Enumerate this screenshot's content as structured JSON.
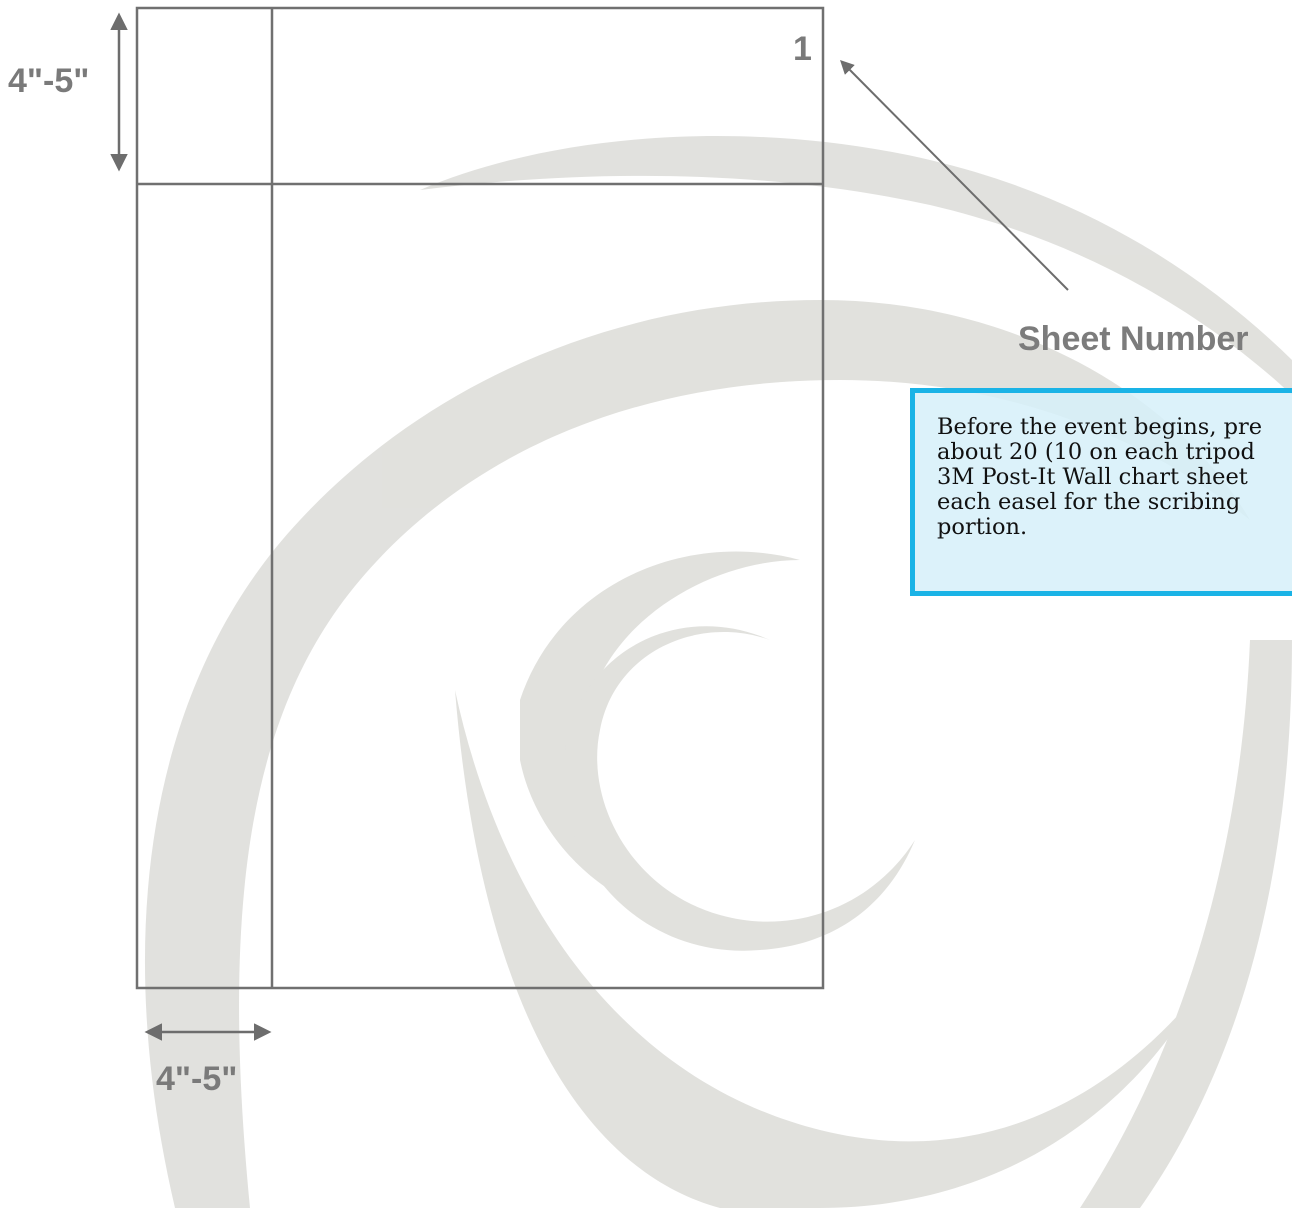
{
  "diagram": {
    "sheet_number": "1",
    "callout_label": "Sheet Number",
    "top_margin_label": "4\"-5\"",
    "left_margin_label": "4\"-5\"",
    "note": "Before the event begins, pre\nabout 20 (10 on each tripod\n3M Post-It Wall chart sheet\neach easel for the scribing\nportion."
  },
  "colors": {
    "swirl": "#dcdcd8",
    "sheet_lines": "#707070",
    "note_border": "#1ab3e6",
    "note_fill": "#d6f0f9"
  }
}
